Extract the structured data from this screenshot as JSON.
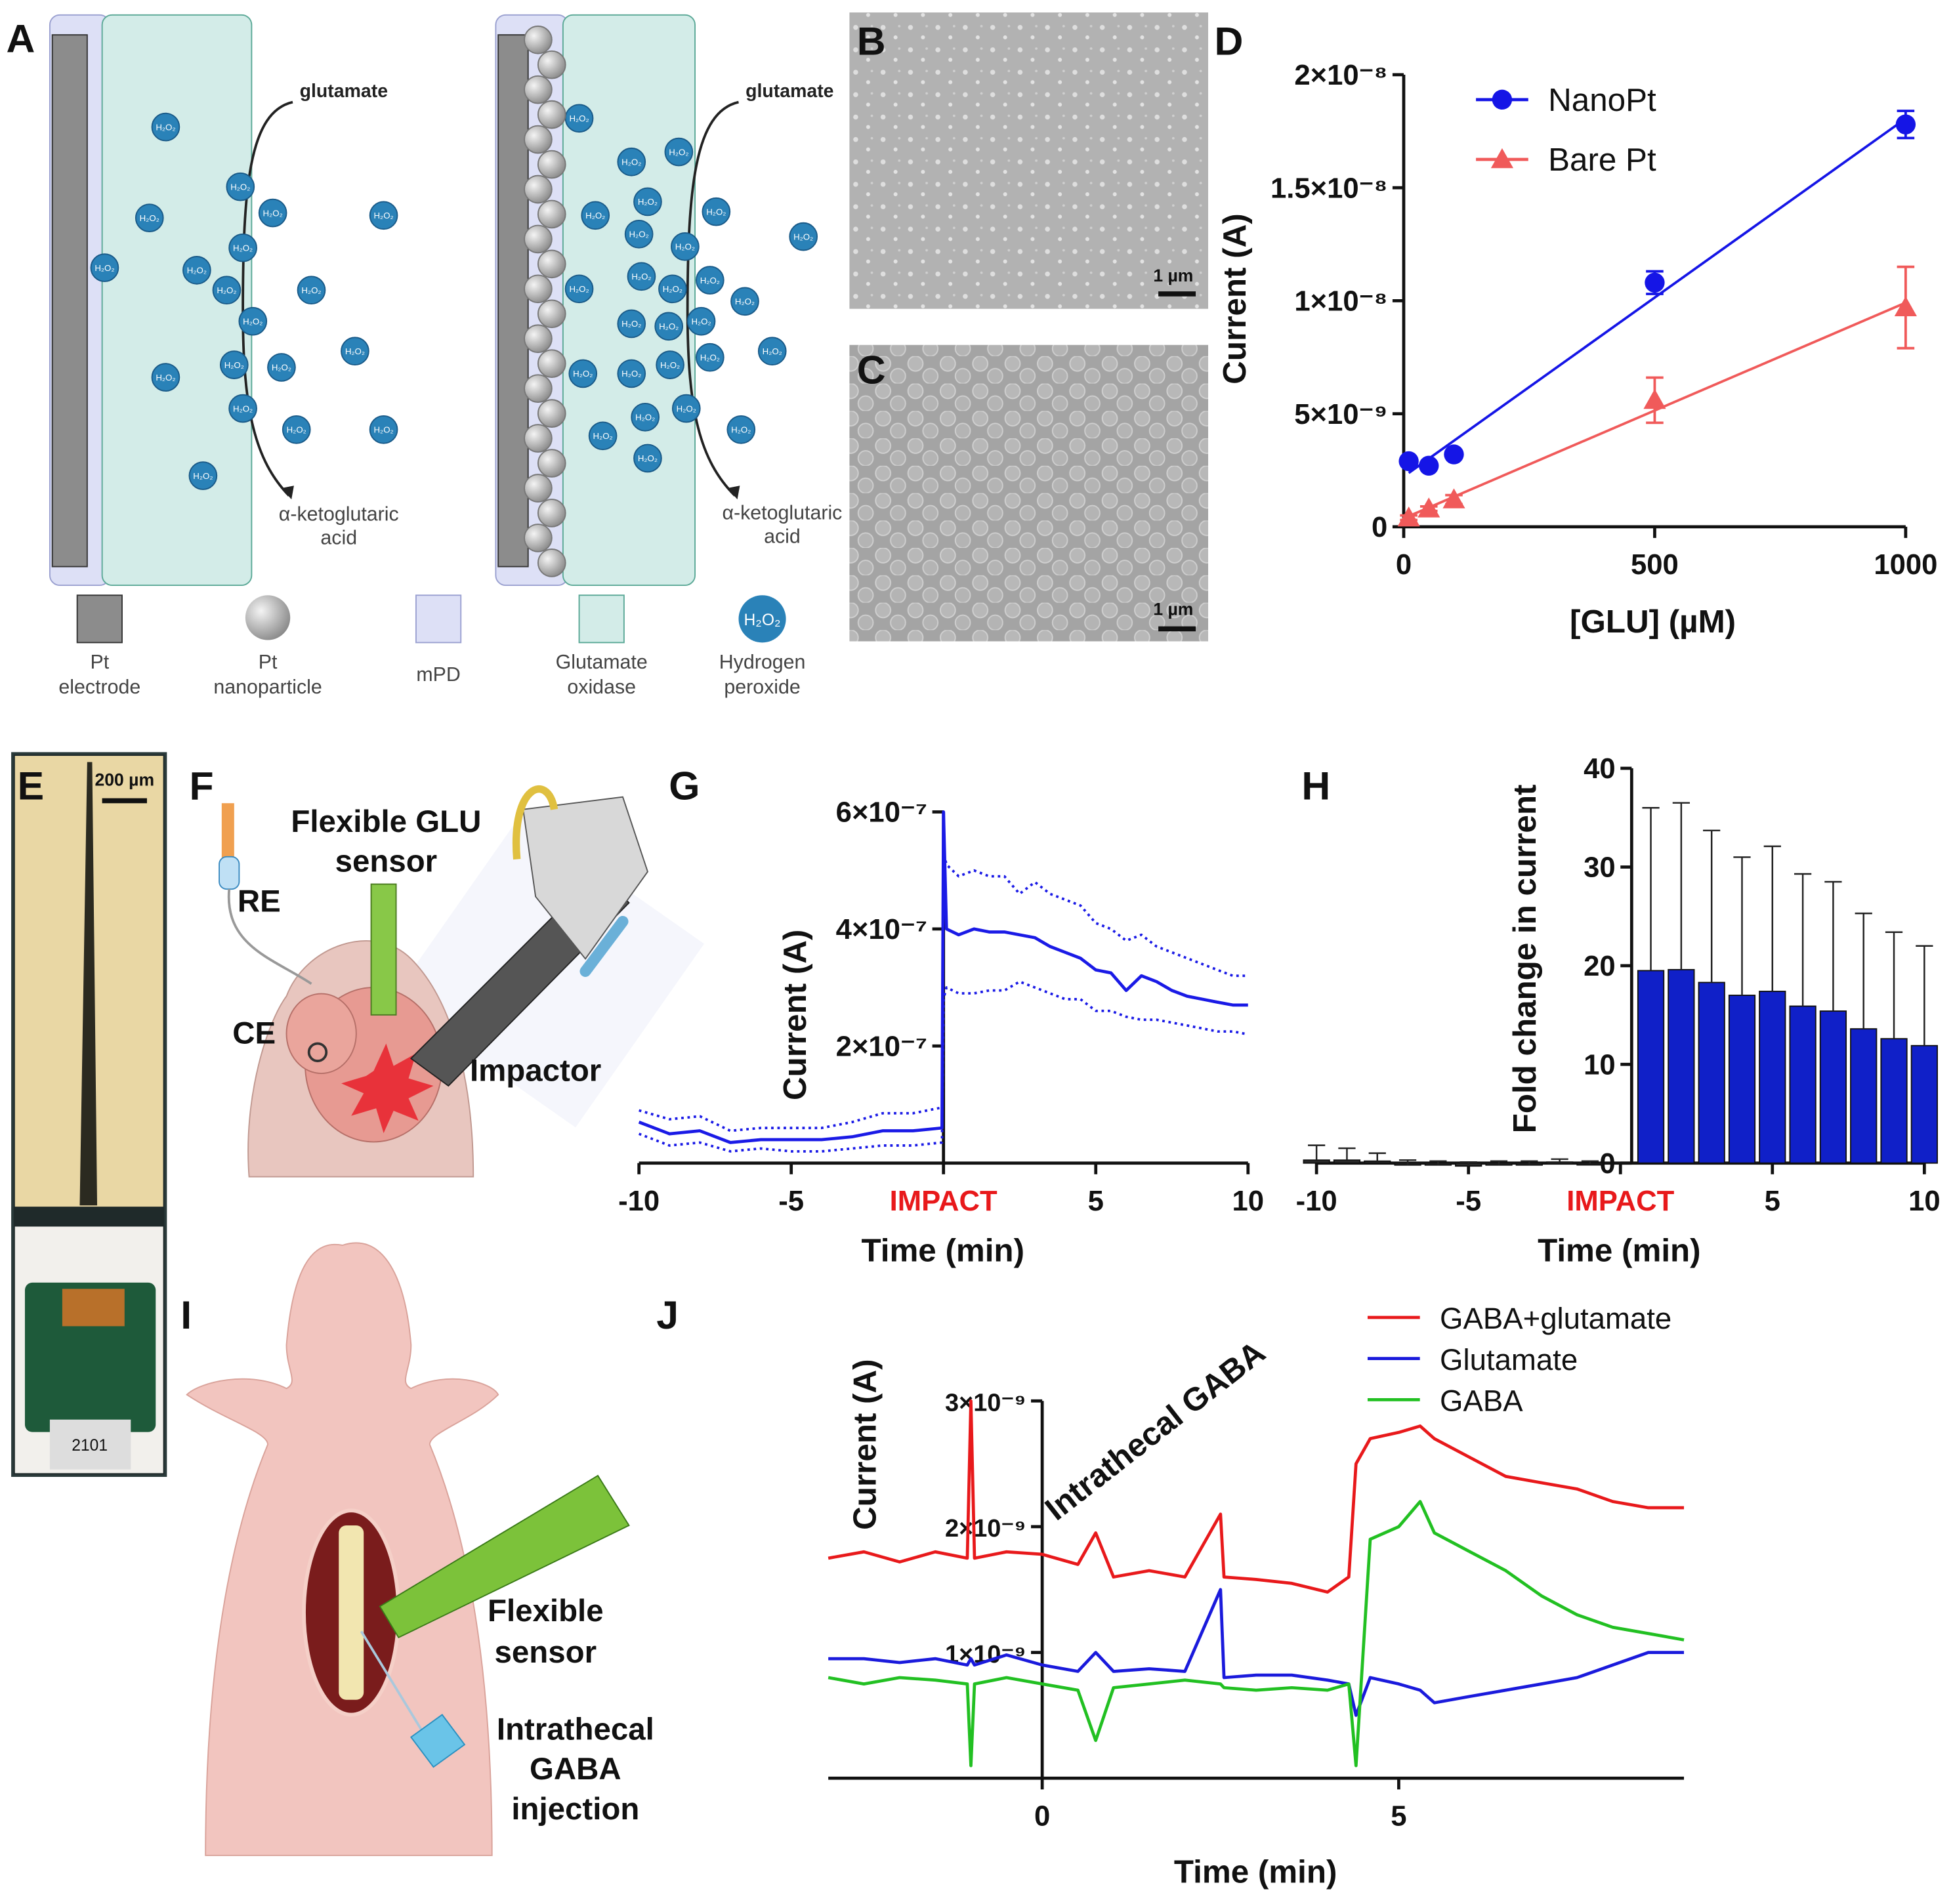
{
  "panel_labels": [
    "A",
    "B",
    "C",
    "D",
    "E",
    "F",
    "G",
    "H",
    "I",
    "J"
  ],
  "panel_a": {
    "reactant": "glutamate",
    "product": [
      "α-ketoglutaric",
      "acid"
    ],
    "molecule": "H₂O₂",
    "legend": [
      [
        "Pt",
        "electrode"
      ],
      [
        "Pt",
        "nanoparticle"
      ],
      [
        "mPD"
      ],
      [
        "Glutamate",
        "oxidase"
      ],
      [
        "Hydrogen",
        "peroxide"
      ]
    ]
  },
  "panel_b": {
    "scale_bar": "1 µm"
  },
  "panel_c": {
    "scale_bar": "1 µm"
  },
  "panel_e": {
    "scale_bar": "200 µm",
    "chip_label": "2101"
  },
  "panel_f": {
    "sensor": [
      "Flexible GLU",
      "sensor"
    ],
    "reference": "RE",
    "counter": "CE",
    "impactor": "Impactor"
  },
  "panel_i": {
    "sensor": [
      "Flexible",
      "sensor"
    ],
    "injection": [
      "Intrathecal",
      "GABA",
      "injection"
    ]
  },
  "chart_data": [
    {
      "type": "scatter",
      "x_label": "[GLU] (µM)",
      "y_label": "Current (A)",
      "x": [
        10,
        50,
        100,
        500,
        1000
      ],
      "series": [
        {
          "name": "NanoPt",
          "color": "#1515e6",
          "marker": "circle",
          "values": [
            2.9e-09,
            2.7e-09,
            3.2e-09,
            1.08e-08,
            1.78e-08
          ],
          "errors": [
            1e-10,
            1e-10,
            1e-10,
            5e-10,
            6e-10
          ]
        },
        {
          "name": "Bare Pt",
          "color": "#f05a5a",
          "marker": "triangle",
          "values": [
            4e-10,
            8e-10,
            1.2e-09,
            5.6e-09,
            9.7e-09
          ],
          "errors": [
            1e-10,
            1e-10,
            2e-10,
            1e-09,
            1.8e-09
          ]
        }
      ],
      "xlim": [
        0,
        1000
      ],
      "xticks": [
        0,
        500,
        1000
      ],
      "ylim": [
        0,
        2e-08
      ],
      "yticks": [
        0,
        {
          "value": 5e-09,
          "label": "5×10⁻⁹"
        },
        {
          "value": 1e-08,
          "label": "1×10⁻⁸"
        },
        {
          "value": 1.5e-08,
          "label": "1.5×10⁻⁸"
        },
        {
          "value": 2e-08,
          "label": "2×10⁻⁸"
        }
      ],
      "legend": "upper left",
      "fit": "linear"
    },
    {
      "type": "line",
      "x_label": "Time (min)",
      "y_label": "Current (A)",
      "x": [
        -10,
        -9,
        -8,
        -7,
        -6,
        -5,
        -4,
        -3,
        -2,
        -1,
        -0.05,
        0,
        0.1,
        0.5,
        1,
        1.5,
        2,
        2.5,
        3,
        3.5,
        4,
        4.5,
        5,
        5.5,
        6,
        6.5,
        7,
        7.5,
        8,
        8.5,
        9,
        9.5,
        10
      ],
      "series": [
        {
          "color": "#1a1ae6",
          "style": "solid",
          "values": [
            7e-08,
            5e-08,
            5.5e-08,
            3.5e-08,
            4e-08,
            4e-08,
            4e-08,
            4.5e-08,
            5.5e-08,
            5.5e-08,
            6e-08,
            6e-07,
            4e-07,
            3.9e-07,
            4e-07,
            3.95e-07,
            3.95e-07,
            3.9e-07,
            3.85e-07,
            3.7e-07,
            3.6e-07,
            3.5e-07,
            3.3e-07,
            3.25e-07,
            2.95e-07,
            3.2e-07,
            3.1e-07,
            2.95e-07,
            2.85e-07,
            2.8e-07,
            2.75e-07,
            2.7e-07,
            2.7e-07
          ]
        },
        {
          "color": "#1a1ae6",
          "style": "dotted",
          "values": [
            9e-08,
            7.5e-08,
            8e-08,
            5.5e-08,
            6e-08,
            6e-08,
            6e-08,
            7e-08,
            8.5e-08,
            8.5e-08,
            9.5e-08,
            5.3e-07,
            5.1e-07,
            4.9e-07,
            5e-07,
            4.9e-07,
            4.9e-07,
            4.6e-07,
            4.8e-07,
            4.6e-07,
            4.5e-07,
            4.4e-07,
            4.1e-07,
            4e-07,
            3.8e-07,
            3.9e-07,
            3.7e-07,
            3.6e-07,
            3.5e-07,
            3.4e-07,
            3.3e-07,
            3.2e-07,
            3.2e-07
          ]
        },
        {
          "color": "#1a1ae6",
          "style": "dotted",
          "values": [
            5e-08,
            3e-08,
            3.5e-08,
            2e-08,
            2.5e-08,
            2e-08,
            2e-08,
            2.5e-08,
            3e-08,
            3e-08,
            3.5e-08,
            2.8e-07,
            3e-07,
            2.9e-07,
            2.9e-07,
            2.95e-07,
            2.95e-07,
            3.1e-07,
            3e-07,
            2.9e-07,
            2.8e-07,
            2.8e-07,
            2.6e-07,
            2.6e-07,
            2.5e-07,
            2.45e-07,
            2.45e-07,
            2.4e-07,
            2.35e-07,
            2.3e-07,
            2.25e-07,
            2.25e-07,
            2.2e-07
          ]
        }
      ],
      "xlim": [
        -10,
        10
      ],
      "xticks": [
        -10,
        -5,
        {
          "value": 0,
          "label": "IMPACT"
        },
        5,
        10
      ],
      "ylim": [
        0,
        6e-07
      ],
      "yticks": [
        {
          "value": 2e-07,
          "label": "2×10⁻⁷"
        },
        {
          "value": 4e-07,
          "label": "4×10⁻⁷"
        },
        {
          "value": 6e-07,
          "label": "6×10⁻⁷"
        }
      ]
    },
    {
      "type": "bar",
      "x_label": "Time (min)",
      "y_label": "Fold change in current",
      "series": [
        {
          "color": "#2a2a2a",
          "x": [
            -10,
            -9,
            -8,
            -7,
            -6,
            -5,
            -4,
            -3,
            -2,
            -1
          ],
          "values": [
            0.3,
            0.3,
            0.2,
            -0.2,
            -0.2,
            -0.3,
            -0.2,
            -0.2,
            0.1,
            -0.1
          ],
          "errors": [
            1.5,
            1.2,
            0.8,
            0.5,
            0.4,
            0.4,
            0.4,
            0.4,
            0.3,
            0.3
          ]
        },
        {
          "color": "#1020c8",
          "x": [
            1,
            2,
            3,
            4,
            5,
            6,
            7,
            8,
            9,
            10
          ],
          "values": [
            19.5,
            19.6,
            18.3,
            17,
            17.4,
            15.9,
            15.4,
            13.6,
            12.6,
            11.9
          ],
          "errors": [
            16.5,
            16.9,
            15.4,
            14.0,
            14.7,
            13.4,
            13.1,
            11.7,
            10.8,
            10.1
          ]
        }
      ],
      "xlim": [
        -10,
        10
      ],
      "xticks": [
        -10,
        -5,
        {
          "value": 0,
          "label": "IMPACT"
        },
        5,
        10
      ],
      "ylim": [
        0,
        40
      ],
      "yticks": [
        0,
        10,
        20,
        30,
        40
      ]
    },
    {
      "type": "line",
      "x_label": "Time (min)",
      "y_label": "Current (A)",
      "annotation": "Intrathecal GABA",
      "x": [
        -3,
        -2.5,
        -2,
        -1.5,
        -1.05,
        -1,
        -0.95,
        -0.5,
        0,
        0.5,
        0.75,
        1,
        1.5,
        2,
        2.5,
        2.55,
        3,
        3.5,
        4,
        4.3,
        4.4,
        4.6,
        5,
        5.3,
        5.5,
        6,
        6.5,
        7,
        7.5,
        8,
        8.5,
        9
      ],
      "series": [
        {
          "name": "GABA+glutamate",
          "color": "#e8191b",
          "style": "solid",
          "values": [
            1.75e-09,
            1.8e-09,
            1.72e-09,
            1.8e-09,
            1.75e-09,
            3e-09,
            1.75e-09,
            1.8e-09,
            1.78e-09,
            1.7e-09,
            1.95e-09,
            1.6e-09,
            1.65e-09,
            1.6e-09,
            2.1e-09,
            1.6e-09,
            1.58e-09,
            1.55e-09,
            1.48e-09,
            1.6e-09,
            2.5e-09,
            2.7e-09,
            2.75e-09,
            2.8e-09,
            2.7e-09,
            2.55e-09,
            2.4e-09,
            2.35e-09,
            2.3e-09,
            2.2e-09,
            2.15e-09,
            2.15e-09
          ]
        },
        {
          "name": "Glutamate",
          "color": "#1a1adc",
          "style": "solid",
          "values": [
            9.5e-10,
            9.5e-10,
            9.2e-10,
            9.5e-10,
            9e-10,
            9.5e-10,
            9e-10,
            9.8e-10,
            9e-10,
            8.5e-10,
            1e-09,
            8.5e-10,
            8.7e-10,
            8.5e-10,
            1.5e-09,
            8e-10,
            8.2e-10,
            8.2e-10,
            7.8e-10,
            7.5e-10,
            5e-10,
            8e-10,
            7.5e-10,
            7e-10,
            6e-10,
            6.5e-10,
            7e-10,
            7.5e-10,
            8e-10,
            9e-10,
            1e-09,
            1e-09
          ]
        },
        {
          "name": "GABA",
          "color": "#22c022",
          "style": "solid",
          "values": [
            8e-10,
            7.5e-10,
            8e-10,
            7.8e-10,
            7.5e-10,
            1e-10,
            7.5e-10,
            8e-10,
            7.5e-10,
            7e-10,
            3e-10,
            7.2e-10,
            7.5e-10,
            7.8e-10,
            7.5e-10,
            7.2e-10,
            7e-10,
            7.2e-10,
            7e-10,
            7.5e-10,
            1e-10,
            1.9e-09,
            2e-09,
            2.2e-09,
            1.95e-09,
            1.8e-09,
            1.65e-09,
            1.45e-09,
            1.3e-09,
            1.2e-09,
            1.15e-09,
            1.1e-09
          ]
        }
      ],
      "xlim": [
        -3,
        9
      ],
      "xticks": [
        0,
        5
      ],
      "ylim": [
        0,
        3e-09
      ],
      "yticks": [
        {
          "value": 1e-09,
          "label": "1×10⁻⁹"
        },
        {
          "value": 2e-09,
          "label": "2×10⁻⁹"
        },
        {
          "value": 3e-09,
          "label": "3×10⁻⁹"
        }
      ],
      "legend": "upper right"
    }
  ]
}
